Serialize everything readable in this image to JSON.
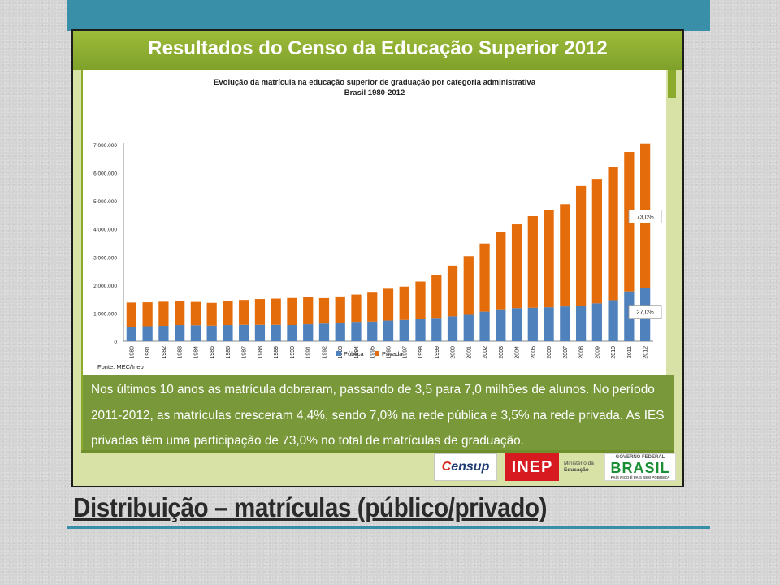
{
  "slide": {
    "title": "Resultados do Censo da Educação Superior 2012",
    "bottom_title": "Distribuição – matrículas (público/privado)",
    "info_text": "Nos últimos 10 anos as matrícula dobraram, passando de 3,5 para 7,0 milhões de alunos. No período 2011-2012, as matrículas cresceram 4,4%, sendo 7,0% na rede pública e 3,5% na rede privada. As IES privadas têm uma participação de 73,0% no total de matrículas de graduação."
  },
  "logos": {
    "censup_prefix": "C",
    "censup_rest": "ensup",
    "inep": "INEP",
    "mec_line1": "Ministério da",
    "mec_line2": "Educação",
    "brasil_top": "GOVERNO FEDERAL",
    "brasil": "BRASIL",
    "brasil_motto": "PAÍS RICO É PAÍS SEM POBREZA"
  },
  "colors": {
    "publica": "#4f81bd",
    "privada": "#e46c0a",
    "accent_green": "#78983a",
    "teal": "#3a8fa8"
  },
  "chart_data": {
    "type": "bar",
    "stacked": true,
    "title": "Evolução da matrícula na educação superior de graduação por categoria administrativa",
    "subtitle": "Brasil 1980-2012",
    "source": "Fonte: MEC/Inep",
    "categories": [
      "1980",
      "1981",
      "1982",
      "1983",
      "1984",
      "1985",
      "1986",
      "1987",
      "1988",
      "1989",
      "1990",
      "1991",
      "1992",
      "1993",
      "1994",
      "1995",
      "1996",
      "1997",
      "1998",
      "1999",
      "2000",
      "2001",
      "2002",
      "2003",
      "2004",
      "2005",
      "2006",
      "2007",
      "2008",
      "2009",
      "2010",
      "2011",
      "2012"
    ],
    "series": [
      {
        "name": "Pública",
        "values": [
          492000,
          535000,
          549000,
          577000,
          571000,
          556000,
          577000,
          585000,
          585000,
          584000,
          579000,
          605000,
          629000,
          653000,
          690000,
          700000,
          736000,
          759000,
          804000,
          832000,
          887000,
          939000,
          1052000,
          1137000,
          1179000,
          1193000,
          1210000,
          1240000,
          1273000,
          1351000,
          1462000,
          1773000,
          1897000
        ]
      },
      {
        "name": "Privada",
        "values": [
          885000,
          851000,
          858000,
          862000,
          828000,
          811000,
          841000,
          885000,
          918000,
          934000,
          961000,
          959000,
          907000,
          941000,
          971000,
          1059000,
          1134000,
          1187000,
          1322000,
          1538000,
          1807000,
          2091000,
          2428000,
          2751000,
          2985000,
          3261000,
          3468000,
          3640000,
          4255000,
          4431000,
          4736000,
          4966000,
          5140000
        ]
      }
    ],
    "ylim": [
      0,
      7000000
    ],
    "yticks": [
      "0",
      "1.000.000",
      "2.000.000",
      "3.000.000",
      "4.000.000",
      "5.000.000",
      "6.000.000",
      "7.000.000"
    ],
    "ytick_values": [
      0,
      1000000,
      2000000,
      3000000,
      4000000,
      5000000,
      6000000,
      7000000
    ],
    "legend": [
      "Pública",
      "Privada"
    ],
    "legend_position": "bottom",
    "annotations": {
      "privada": "73,0%",
      "publica": "27,0%"
    },
    "grid": false
  }
}
